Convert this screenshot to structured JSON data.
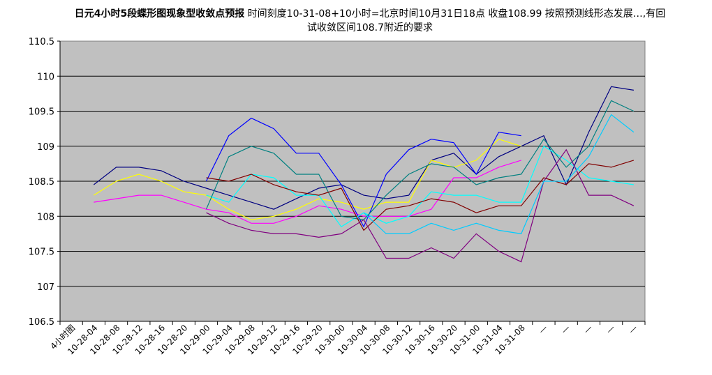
{
  "title_main": "日元4小时5段蝶形图现象型收敛点预报",
  "title_detail": "时间刻度10-31-08+10小时=北京时间10月31日18点 收盘108.99 按照预测线形态发展…,有回试收敛区间108.7附近的要求",
  "chart_data": {
    "type": "line",
    "ylim": [
      106.5,
      110.5
    ],
    "yticks": [
      "106.5",
      "107",
      "107.5",
      "108",
      "108.5",
      "109",
      "109.5",
      "110",
      "110.5"
    ],
    "grid": true,
    "categories": [
      "4小时图",
      "10-28-04",
      "10-28-08",
      "10-28-12",
      "10-28-16",
      "10-28-20",
      "10-29-00",
      "10-29-04",
      "10-29-08",
      "10-29-12",
      "10-29-16",
      "10-29-20",
      "10-30-00",
      "10-30-04",
      "10-30-08",
      "10-30-12",
      "10-30-16",
      "10-30-20",
      "10-31-00",
      "10-31-04",
      "10-31-08",
      "—",
      "—",
      "—",
      "—",
      "—"
    ],
    "series": [
      {
        "color": "#000080",
        "values": [
          null,
          108.45,
          108.7,
          108.7,
          108.65,
          108.5,
          108.4,
          108.3,
          108.2,
          108.1,
          108.25,
          108.4,
          108.45,
          108.3,
          108.25,
          108.3,
          108.8,
          108.9,
          108.6,
          108.85,
          109.0,
          109.15,
          108.45,
          109.2,
          109.85,
          109.8
        ]
      },
      {
        "color": "#FF00FF",
        "values": [
          null,
          108.2,
          108.25,
          108.3,
          108.3,
          108.2,
          108.1,
          108.05,
          107.9,
          107.9,
          108.0,
          108.15,
          108.1,
          108.0,
          108.0,
          108.0,
          108.1,
          108.55,
          108.55,
          108.7,
          108.8,
          null,
          null,
          null,
          null,
          null
        ]
      },
      {
        "color": "#FFFF00",
        "values": [
          null,
          108.3,
          108.5,
          108.6,
          108.5,
          108.35,
          108.3,
          108.1,
          107.95,
          108.0,
          108.1,
          108.25,
          108.2,
          108.1,
          108.2,
          108.2,
          108.8,
          108.7,
          108.8,
          109.1,
          109.0,
          null,
          null,
          null,
          null,
          null
        ]
      },
      {
        "color": "#0000FF",
        "values": [
          null,
          null,
          null,
          null,
          null,
          null,
          108.5,
          109.15,
          109.4,
          109.25,
          108.9,
          108.9,
          108.45,
          107.85,
          108.6,
          108.95,
          109.1,
          109.05,
          108.6,
          109.2,
          109.15,
          null,
          null,
          null,
          null,
          null
        ]
      },
      {
        "color": "#00FFFF",
        "values": [
          null,
          null,
          null,
          null,
          null,
          null,
          108.3,
          108.2,
          108.6,
          108.55,
          108.3,
          108.3,
          107.85,
          108.05,
          107.9,
          108.0,
          108.35,
          108.3,
          108.3,
          108.2,
          108.2,
          109.0,
          108.8,
          108.55,
          108.5,
          108.45
        ]
      },
      {
        "color": "#008080",
        "values": [
          null,
          null,
          null,
          null,
          null,
          null,
          108.1,
          108.85,
          109.0,
          108.9,
          108.6,
          108.6,
          108.0,
          107.95,
          108.3,
          108.6,
          108.75,
          108.7,
          108.45,
          108.55,
          108.6,
          109.1,
          108.7,
          109.0,
          109.65,
          109.5
        ]
      },
      {
        "color": "#800000",
        "values": [
          null,
          null,
          null,
          null,
          null,
          null,
          108.55,
          108.5,
          108.6,
          108.45,
          108.35,
          108.3,
          108.4,
          107.8,
          108.1,
          108.15,
          108.25,
          108.2,
          108.05,
          108.15,
          108.15,
          108.55,
          108.45,
          108.75,
          108.7,
          108.8
        ]
      },
      {
        "color": "#800080",
        "values": [
          null,
          null,
          null,
          null,
          null,
          null,
          108.05,
          107.9,
          107.8,
          107.75,
          107.75,
          107.7,
          107.75,
          107.95,
          107.4,
          107.4,
          107.55,
          107.4,
          107.75,
          107.5,
          107.35,
          108.5,
          108.95,
          108.3,
          108.3,
          108.15
        ]
      },
      {
        "color": "#00CCFF",
        "values": [
          null,
          null,
          null,
          null,
          null,
          null,
          null,
          null,
          null,
          null,
          null,
          null,
          null,
          108.05,
          107.75,
          107.75,
          107.9,
          107.8,
          107.9,
          107.8,
          107.75,
          108.5,
          108.5,
          108.85,
          109.45,
          109.2
        ]
      }
    ]
  }
}
